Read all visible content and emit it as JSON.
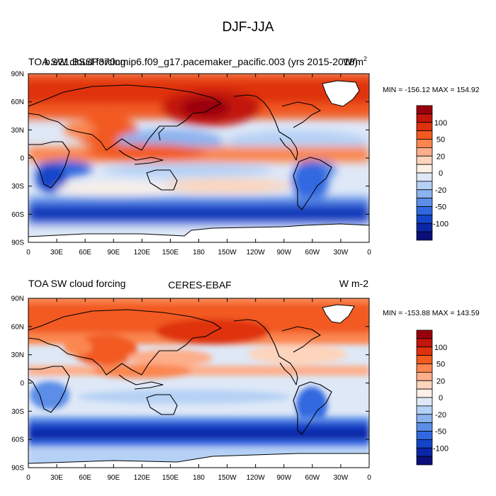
{
  "figure": {
    "title": "DJF-JJA"
  },
  "chart_data": [
    {
      "type": "heatmap",
      "title_left": "TOA SW cloud forcing",
      "title_center": "b.e21.BSSP370cmip6.f09_g17.pacemaker_pacific.003 (yrs 2015-2018)",
      "units": "W/m2",
      "units_base": "W/m",
      "units_sup": "2",
      "min_max_text": "MIN = -156.12 MAX = 154.92",
      "min": -156.12,
      "max": 154.92,
      "xlabel": "",
      "ylabel": "",
      "x_ticks": [
        "0",
        "30E",
        "60E",
        "90E",
        "120E",
        "150E",
        "180",
        "150W",
        "120W",
        "90W",
        "60W",
        "30W",
        "0"
      ],
      "y_ticks": [
        "90N",
        "60N",
        "30N",
        "0",
        "30S",
        "60S",
        "90S"
      ],
      "colorbar_labels": [
        "100",
        "50",
        "20",
        "0",
        "-20",
        "-50",
        "-100"
      ]
    },
    {
      "type": "heatmap",
      "title_left": "TOA SW cloud forcing",
      "title_center": "CERES-EBAF",
      "units": "W m-2",
      "min_max_text": "MIN = -153.88 MAX = 143.59",
      "min": -153.88,
      "max": 143.59,
      "xlabel": "",
      "ylabel": "",
      "x_ticks": [
        "0",
        "30E",
        "60E",
        "90E",
        "120E",
        "150E",
        "180",
        "150W",
        "120W",
        "90W",
        "60W",
        "30W",
        "0"
      ],
      "y_ticks": [
        "90N",
        "60N",
        "30N",
        "0",
        "30S",
        "60S",
        "90S"
      ],
      "colorbar_labels": [
        "100",
        "50",
        "20",
        "0",
        "-20",
        "-50",
        "-100"
      ]
    }
  ],
  "colors": {
    "levels": [
      "#99000d",
      "#c2150b",
      "#df310d",
      "#f25a20",
      "#fb8650",
      "#fdae8a",
      "#fdd4bc",
      "#fdf0e6",
      "#dee8f7",
      "#b5d1f5",
      "#8cb3ef",
      "#5b8ee8",
      "#3068e0",
      "#1444c9",
      "#0a26a6",
      "#0a0f7a"
    ],
    "land_white": "#ffffff",
    "coast": "#000000"
  }
}
